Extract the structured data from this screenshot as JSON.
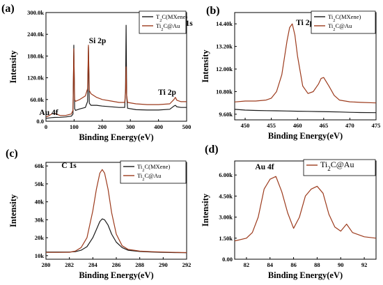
{
  "colors": {
    "mxene": "#1a1a1a",
    "au": "#9c3a1c",
    "axis": "#000000"
  },
  "chart_data": [
    {
      "type": "line",
      "panel": "(a)",
      "xlabel": "Binding Energy(eV)",
      "ylabel": "Intensity",
      "xlim": [
        0,
        500
      ],
      "ylim": [
        0,
        300000
      ],
      "xticks": [
        0,
        100,
        200,
        300,
        400,
        500
      ],
      "yticks": [
        "0.0",
        "60.0k",
        "120.0k",
        "180.0k",
        "240.0k",
        "300.0k"
      ],
      "legend": {
        "position": "top-right",
        "entries": [
          "T2C(MXene)",
          "Ti2C@Au"
        ]
      },
      "annotations": [
        {
          "text": "C 1s",
          "x": 285
        },
        {
          "text": "Si 2p",
          "x": 150
        },
        {
          "text": "Ti 2p",
          "x": 460
        },
        {
          "text": "Au 4f",
          "x": 30
        }
      ],
      "series": [
        {
          "name": "T2C(MXene)",
          "color": "mxene",
          "x": [
            0,
            10,
            20,
            30,
            50,
            70,
            90,
            96,
            99,
            102,
            105,
            120,
            140,
            148,
            151,
            154,
            160,
            180,
            200,
            230,
            260,
            280,
            283,
            285,
            287,
            290,
            320,
            360,
            400,
            440,
            455,
            460,
            465,
            480,
            500
          ],
          "y": [
            8000,
            9000,
            10000,
            10500,
            11000,
            12000,
            14000,
            20000,
            210000,
            35000,
            30000,
            34000,
            38000,
            55000,
            205000,
            50000,
            44000,
            44000,
            42000,
            40000,
            38000,
            38000,
            90000,
            265000,
            70000,
            36000,
            32000,
            31000,
            31000,
            33000,
            42000,
            44000,
            40000,
            38000,
            38000
          ]
        },
        {
          "name": "Ti2C@Au",
          "color": "au",
          "x": [
            0,
            10,
            20,
            30,
            50,
            70,
            90,
            96,
            99,
            102,
            105,
            120,
            140,
            148,
            151,
            154,
            160,
            180,
            200,
            230,
            260,
            280,
            283,
            285,
            287,
            290,
            320,
            360,
            400,
            440,
            455,
            460,
            465,
            480,
            500
          ],
          "y": [
            12000,
            15000,
            20000,
            22000,
            16000,
            16000,
            20000,
            30000,
            200000,
            60000,
            55000,
            60000,
            70000,
            90000,
            210000,
            85000,
            76000,
            66000,
            60000,
            56000,
            52000,
            52000,
            80000,
            150000,
            72000,
            52000,
            48000,
            46000,
            46000,
            48000,
            60000,
            66000,
            58000,
            54000,
            54000
          ]
        }
      ]
    },
    {
      "type": "line",
      "panel": "(b)",
      "xlabel": "Binding Energy(eV)",
      "ylabel": "Intensity",
      "xlim": [
        448,
        475
      ],
      "ylim": [
        9300,
        15000
      ],
      "xticks": [
        450,
        455,
        460,
        465,
        470,
        475
      ],
      "yticks": [
        "9.60k",
        "10.80k",
        "12.00k",
        "13.20k",
        "14.40k"
      ],
      "legend": {
        "position": "top-right",
        "entries": [
          "Ti2C(MXene)",
          "Ti2C@Au"
        ]
      },
      "annotations": [
        {
          "text": "Ti 2p",
          "x": 459
        }
      ],
      "series": [
        {
          "name": "Ti2C(MXene)",
          "color": "mxene",
          "x": [
            448,
            450,
            452,
            454,
            456,
            458,
            460,
            462,
            464,
            466,
            468,
            470,
            472,
            475
          ],
          "y": [
            9860,
            9820,
            9800,
            9790,
            9780,
            9770,
            9760,
            9750,
            9740,
            9730,
            9720,
            9700,
            9690,
            9680
          ]
        },
        {
          "name": "Ti2C@Au",
          "color": "au",
          "x": [
            448,
            450,
            452,
            454,
            455,
            456,
            457,
            458,
            458.5,
            459,
            459.5,
            460,
            461,
            462,
            463,
            464,
            464.5,
            465,
            466,
            467,
            468,
            470,
            472,
            475
          ],
          "y": [
            10250,
            10300,
            10300,
            10350,
            10450,
            10800,
            11700,
            13500,
            14200,
            14400,
            13800,
            12700,
            11100,
            10700,
            10800,
            11200,
            11500,
            11550,
            11100,
            10600,
            10350,
            10260,
            10230,
            10200
          ]
        }
      ]
    },
    {
      "type": "line",
      "panel": "(c)",
      "xlabel": "Binding Energy(eV)",
      "ylabel": "Intensity",
      "xlim": [
        280,
        292
      ],
      "ylim": [
        8000,
        62000
      ],
      "xticks": [
        280,
        282,
        284,
        286,
        288,
        290,
        292
      ],
      "yticks": [
        "10k",
        "20k",
        "30k",
        "40k",
        "50k",
        "60k"
      ],
      "legend": {
        "position": "top-right",
        "entries": [
          "Ti2C(MXene)",
          "Ti2C@Au"
        ]
      },
      "annotations": [
        {
          "text": "C 1s",
          "x": 284.5
        }
      ],
      "series": [
        {
          "name": "Ti2C(MXene)",
          "color": "mxene",
          "x": [
            280,
            281,
            282,
            282.5,
            283,
            283.5,
            284,
            284.3,
            284.6,
            284.8,
            285,
            285.3,
            285.6,
            286,
            286.5,
            287,
            288,
            289,
            290,
            291,
            292
          ],
          "y": [
            12000,
            12000,
            12000,
            12200,
            13000,
            15000,
            20000,
            24500,
            29000,
            30500,
            30000,
            27000,
            22000,
            17500,
            14500,
            13000,
            12300,
            12000,
            11800,
            11700,
            11600
          ]
        },
        {
          "name": "Ti2C@Au",
          "color": "au",
          "x": [
            280,
            281,
            282,
            282.5,
            283,
            283.5,
            284,
            284.3,
            284.6,
            284.8,
            285,
            285.3,
            285.6,
            286,
            286.5,
            287,
            288,
            289,
            290,
            291,
            292
          ],
          "y": [
            11800,
            11800,
            11900,
            12500,
            14500,
            20000,
            35000,
            47000,
            56000,
            58000,
            56000,
            47000,
            34000,
            22000,
            15500,
            13500,
            12500,
            12200,
            12000,
            11800,
            11700
          ]
        }
      ]
    },
    {
      "type": "line",
      "panel": "(d)",
      "xlabel": "Binding Energy(eV)",
      "ylabel": "Intensity",
      "xlim": [
        81,
        93
      ],
      "ylim": [
        0,
        7000
      ],
      "xticks": [
        82,
        84,
        86,
        88,
        90,
        92
      ],
      "yticks": [
        "0.00",
        "1.50k",
        "3.00k",
        "4.50k",
        "6.00k"
      ],
      "legend": {
        "position": "top-right",
        "entries": [
          "Ti2C@Au"
        ]
      },
      "annotations": [
        {
          "text": "Au 4f",
          "x": 84
        }
      ],
      "series": [
        {
          "name": "Ti2C@Au",
          "color": "au",
          "x": [
            81,
            82,
            82.5,
            83,
            83.5,
            84,
            84.5,
            85,
            85.5,
            86,
            86.5,
            87,
            87.5,
            88,
            88.5,
            89,
            89.5,
            90,
            90.5,
            91,
            92,
            93
          ],
          "y": [
            1300,
            1500,
            1900,
            3000,
            5000,
            5700,
            5900,
            4800,
            3300,
            2200,
            3000,
            4500,
            5000,
            5200,
            4700,
            3200,
            2300,
            2000,
            2500,
            1900,
            1600,
            1500
          ]
        }
      ]
    }
  ]
}
